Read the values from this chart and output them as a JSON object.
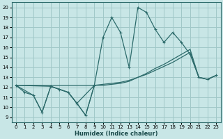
{
  "xlabel": "Humidex (Indice chaleur)",
  "xlim": [
    -0.5,
    23.5
  ],
  "ylim": [
    8.5,
    20.5
  ],
  "yticks": [
    9,
    10,
    11,
    12,
    13,
    14,
    15,
    16,
    17,
    18,
    19,
    20
  ],
  "xticks": [
    0,
    1,
    2,
    3,
    4,
    5,
    6,
    7,
    8,
    9,
    10,
    11,
    12,
    13,
    14,
    15,
    16,
    17,
    18,
    19,
    20,
    21,
    22,
    23
  ],
  "background_color": "#c8e6e6",
  "grid_color": "#a0c8c8",
  "line_color": "#2d6b6b",
  "series1_x": [
    0,
    1,
    2,
    3,
    4,
    5,
    6,
    7,
    8,
    9,
    10,
    11,
    12,
    13,
    14,
    15,
    16,
    17,
    18,
    19,
    20,
    21,
    22,
    23
  ],
  "series1_y": [
    12.2,
    11.5,
    11.2,
    9.5,
    12.1,
    11.8,
    11.5,
    10.4,
    9.2,
    12.2,
    17.0,
    19.0,
    17.5,
    14.0,
    20.0,
    19.5,
    17.8,
    16.5,
    17.5,
    16.5,
    15.3,
    13.0,
    12.8,
    13.2
  ],
  "series2_x": [
    0,
    4,
    5,
    6,
    7,
    9,
    10,
    11,
    12,
    13,
    14,
    15,
    16,
    17,
    18,
    19,
    20,
    21,
    22,
    23
  ],
  "series2_y": [
    12.2,
    12.1,
    11.8,
    11.5,
    10.4,
    12.2,
    12.2,
    12.3,
    12.4,
    12.6,
    13.0,
    13.4,
    13.9,
    14.3,
    14.8,
    15.3,
    15.8,
    13.0,
    12.8,
    13.2
  ],
  "series3_x": [
    0,
    9,
    10,
    11,
    12,
    13,
    14,
    15,
    16,
    17,
    18,
    19,
    20,
    21,
    22,
    23
  ],
  "series3_y": [
    12.2,
    12.2,
    12.3,
    12.4,
    12.5,
    12.7,
    13.0,
    13.3,
    13.7,
    14.1,
    14.5,
    15.0,
    15.5,
    13.0,
    12.8,
    13.2
  ],
  "series4_x": [
    0,
    2,
    3,
    4,
    5,
    6,
    7,
    8,
    9
  ],
  "series4_y": [
    12.2,
    11.2,
    9.5,
    12.1,
    11.8,
    11.5,
    10.4,
    9.2,
    12.2
  ]
}
